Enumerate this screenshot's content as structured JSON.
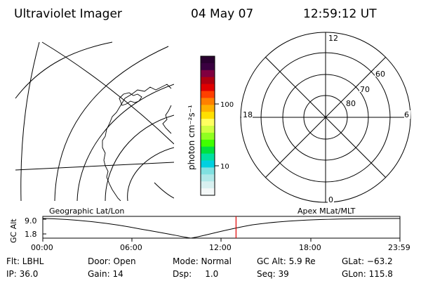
{
  "header": {
    "title": "Ultraviolet Imager",
    "date": "04 May 07",
    "time": "12:59:12 UT"
  },
  "colorbar": {
    "unit_label": "photon cm⁻²s⁻¹",
    "tick_labels": [
      "100",
      "10"
    ],
    "colors": [
      "#2a0030",
      "#3a0040",
      "#800040",
      "#b00010",
      "#e00000",
      "#ff4000",
      "#ff8000",
      "#ffb000",
      "#ffe000",
      "#ffff60",
      "#d0ff40",
      "#90ff20",
      "#40ff00",
      "#00e040",
      "#00e0a0",
      "#00d0e0",
      "#80e0e0",
      "#b0e8e8",
      "#d8f0f0",
      "#f4f8f8"
    ]
  },
  "polar_plot": {
    "mlt_labels": {
      "top": "12",
      "left": "18",
      "right": "6",
      "bottom": "0"
    },
    "lat_labels": [
      "80",
      "70",
      "60"
    ]
  },
  "timeline": {
    "left_title": "Geographic Lat/Lon",
    "right_title": "Apex MLat/MLT",
    "ylabel": "GC Alt",
    "ytick_top": "9.0",
    "ytick_bottom": "1.8",
    "time_ticks": [
      "00:00",
      "06:00",
      "12:00",
      "18:00",
      "23:59"
    ],
    "current_time_fraction": 0.5411,
    "marker_color": "#e00000"
  },
  "footer": {
    "row1": [
      "Flt: LBHL",
      "Door: Open",
      "Mode: Normal",
      "GC Alt: 5.9 Re",
      "GLat: −63.2"
    ],
    "row2": [
      "IP: 36.0",
      "Gain: 14",
      "Dsp:     1.0",
      "Seq: 39",
      "GLon: 115.8"
    ]
  }
}
